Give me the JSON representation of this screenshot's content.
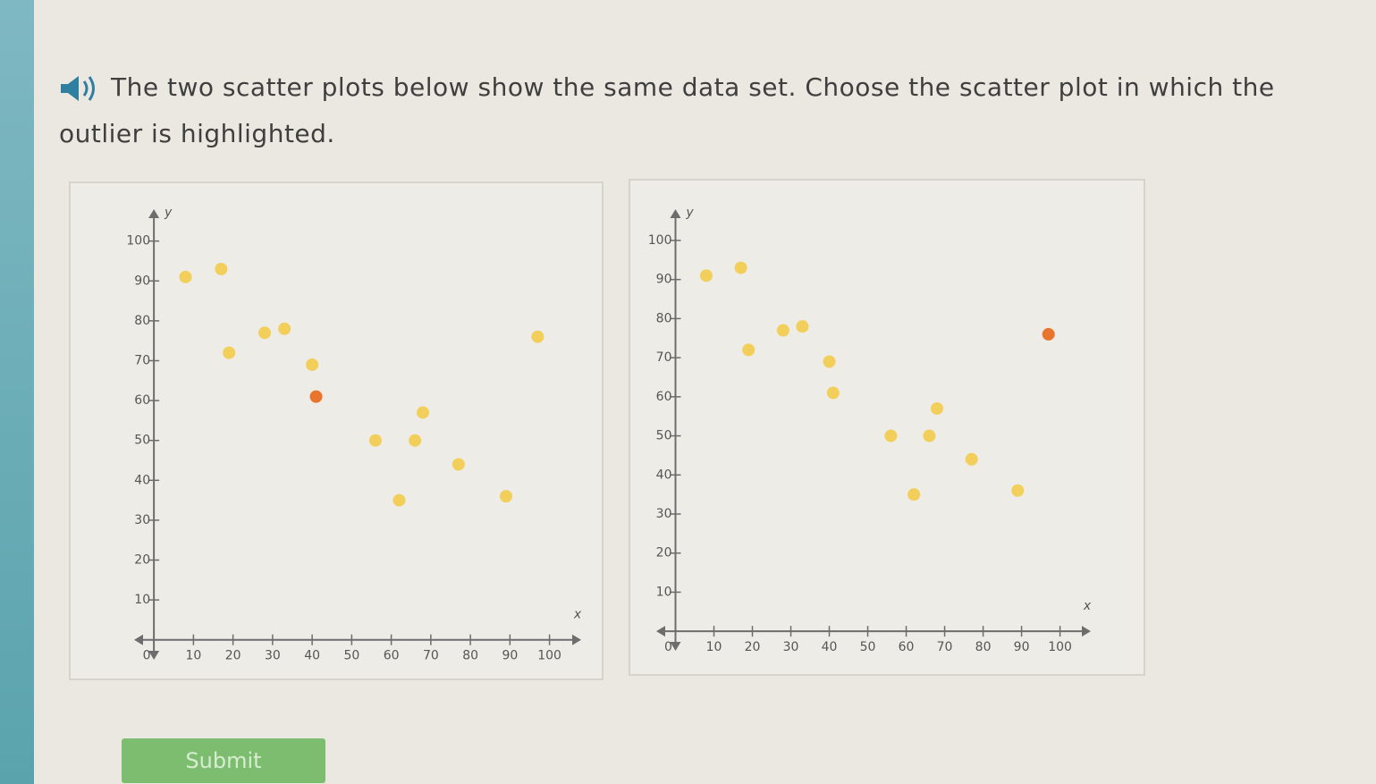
{
  "question": "The two scatter plots below show the same data set. Choose the scatter plot in which the outlier is highlighted.",
  "submit": "Submit",
  "chart_data": [
    {
      "type": "scatter",
      "x_label": "x",
      "y_label": "y",
      "x": [
        8,
        17,
        19,
        28,
        33,
        40,
        41,
        56,
        66,
        68,
        62,
        77,
        89,
        97
      ],
      "values": [
        91,
        93,
        72,
        77,
        78,
        69,
        61,
        50,
        50,
        57,
        35,
        44,
        36,
        76
      ],
      "colors": [
        "#f2cf5b",
        "#f2cf5b",
        "#f2cf5b",
        "#f2cf5b",
        "#f2cf5b",
        "#f2cf5b",
        "#e8742e",
        "#f2cf5b",
        "#f2cf5b",
        "#f2cf5b",
        "#f2cf5b",
        "#f2cf5b",
        "#f2cf5b",
        "#f2cf5b"
      ],
      "xlim": [
        -5,
        108
      ],
      "ylim": [
        -5,
        108
      ],
      "xticks": [
        0,
        10,
        20,
        30,
        40,
        50,
        60,
        70,
        80,
        90,
        100
      ],
      "yticks": [
        10,
        20,
        30,
        40,
        50,
        60,
        70,
        80,
        90,
        100
      ]
    },
    {
      "type": "scatter",
      "x_label": "x",
      "y_label": "y",
      "x": [
        8,
        17,
        19,
        28,
        33,
        40,
        41,
        56,
        66,
        68,
        62,
        77,
        89,
        97
      ],
      "values": [
        91,
        93,
        72,
        77,
        78,
        69,
        61,
        50,
        50,
        57,
        35,
        44,
        36,
        76
      ],
      "colors": [
        "#f2cf5b",
        "#f2cf5b",
        "#f2cf5b",
        "#f2cf5b",
        "#f2cf5b",
        "#f2cf5b",
        "#f2cf5b",
        "#f2cf5b",
        "#f2cf5b",
        "#f2cf5b",
        "#f2cf5b",
        "#f2cf5b",
        "#f2cf5b",
        "#e8742e"
      ],
      "xlim": [
        -5,
        108
      ],
      "ylim": [
        -5,
        108
      ],
      "xticks": [
        0,
        10,
        20,
        30,
        40,
        50,
        60,
        70,
        80,
        90,
        100
      ],
      "yticks": [
        10,
        20,
        30,
        40,
        50,
        60,
        70,
        80,
        90,
        100
      ]
    }
  ]
}
